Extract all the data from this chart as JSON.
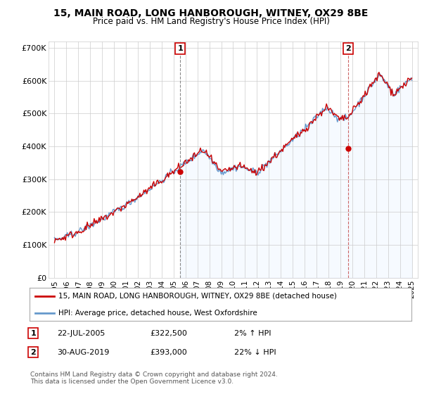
{
  "title": "15, MAIN ROAD, LONG HANBOROUGH, WITNEY, OX29 8BE",
  "subtitle": "Price paid vs. HM Land Registry's House Price Index (HPI)",
  "legend_line1": "15, MAIN ROAD, LONG HANBOROUGH, WITNEY, OX29 8BE (detached house)",
  "legend_line2": "HPI: Average price, detached house, West Oxfordshire",
  "annotation1_label": "1",
  "annotation1_date": "22-JUL-2005",
  "annotation1_price": "£322,500",
  "annotation1_hpi": "2% ↑ HPI",
  "annotation1_year": 2005.55,
  "annotation1_value": 322500,
  "annotation2_label": "2",
  "annotation2_date": "30-AUG-2019",
  "annotation2_price": "£393,000",
  "annotation2_hpi": "22% ↓ HPI",
  "annotation2_year": 2019.66,
  "annotation2_value": 393000,
  "footer": "Contains HM Land Registry data © Crown copyright and database right 2024.\nThis data is licensed under the Open Government Licence v3.0.",
  "hpi_color": "#6699cc",
  "hpi_fill_color": "#ddeeff",
  "price_color": "#cc0000",
  "background_color": "#ffffff",
  "plot_bg_color": "#ffffff",
  "grid_color": "#cccccc",
  "ylim": [
    0,
    720000
  ],
  "xlim_start": 1994.5,
  "xlim_end": 2025.5,
  "yticks": [
    0,
    100000,
    200000,
    300000,
    400000,
    500000,
    600000,
    700000
  ],
  "ytick_labels": [
    "£0",
    "£100K",
    "£200K",
    "£300K",
    "£400K",
    "£500K",
    "£600K",
    "£700K"
  ],
  "xticks": [
    1995,
    1996,
    1997,
    1998,
    1999,
    2000,
    2001,
    2002,
    2003,
    2004,
    2005,
    2006,
    2007,
    2008,
    2009,
    2010,
    2011,
    2012,
    2013,
    2014,
    2015,
    2016,
    2017,
    2018,
    2019,
    2020,
    2021,
    2022,
    2023,
    2024,
    2025
  ]
}
